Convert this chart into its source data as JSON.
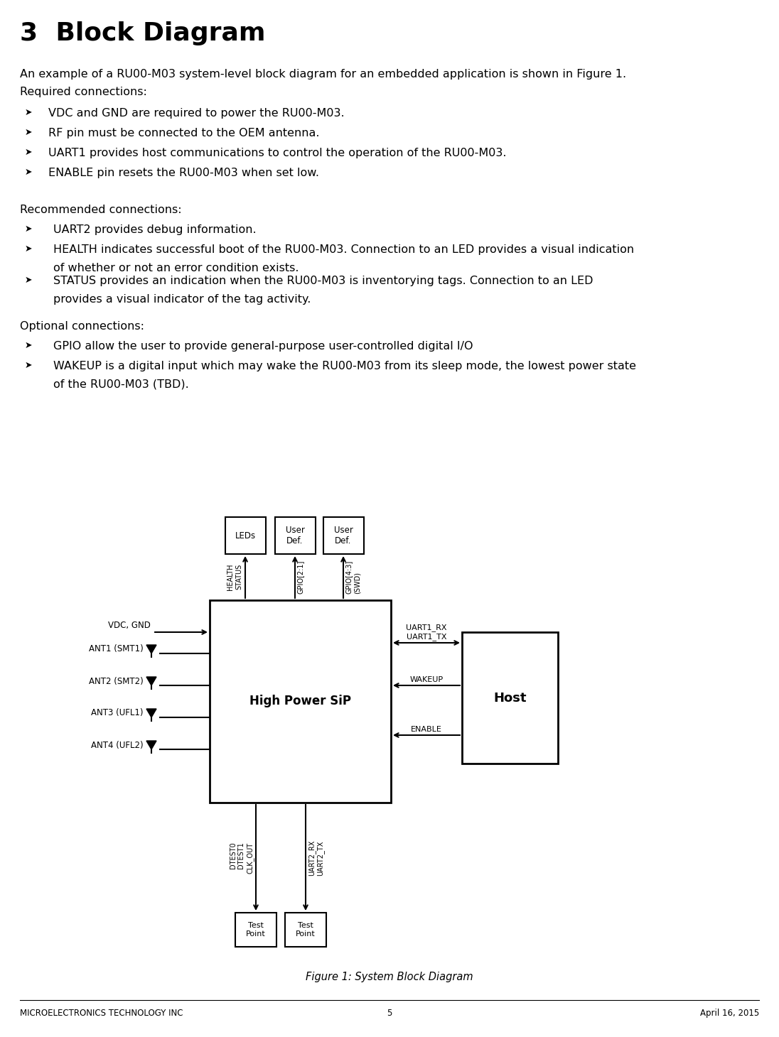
{
  "title": "3  Block Diagram",
  "intro_text": "An example of a RU00-M03 system-level block diagram for an embedded application is shown in Figure 1.",
  "section1_header": "Required connections:",
  "section1_bullets": [
    "VDC and GND are required to power the RU00-M03.",
    "RF pin must be connected to the OEM antenna.",
    "UART1 provides host communications to control the operation of the RU00-M03.",
    "ENABLE pin resets the RU00-M03 when set low."
  ],
  "section2_header": "Recommended connections:",
  "section2_bullets_line1": [
    "UART2 provides debug information.",
    "HEALTH indicates successful boot of the RU00-M03. Connection to an LED provides a visual indication",
    "STATUS provides an indication when the RU00-M03 is inventorying tags. Connection to an LED"
  ],
  "section2_bullets_line2": [
    "",
    "of whether or not an error condition exists.",
    "provides a visual indicator of the tag activity."
  ],
  "section3_header": "Optional connections:",
  "section3_bullets_line1": [
    "GPIO allow the user to provide general-purpose user-controlled digital I/O",
    "WAKEUP is a digital input which may wake the RU00-M03 from its sleep mode, the lowest power state"
  ],
  "section3_bullets_line2": [
    "",
    "of the RU00-M03 (TBD)."
  ],
  "figure_caption": "Figure 1: System Block Diagram",
  "footer_left": "MICROELECTRONICS TECHNOLOGY INC",
  "footer_center": "5",
  "footer_right": "April 16, 2015",
  "bg_color": "#ffffff",
  "text_color": "#000000"
}
